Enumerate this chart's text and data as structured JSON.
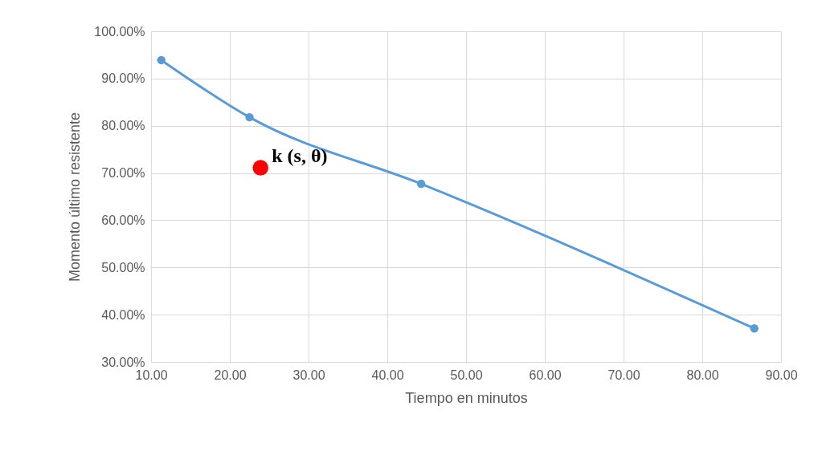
{
  "chart_data": {
    "type": "line",
    "xlabel": "Tiempo en minutos",
    "ylabel": "Momento último resistente",
    "xlim": [
      10,
      90
    ],
    "xticks": [
      {
        "value": 10,
        "label": "10.00"
      },
      {
        "value": 20,
        "label": "20.00"
      },
      {
        "value": 30,
        "label": "30.00"
      },
      {
        "value": 40,
        "label": "40.00"
      },
      {
        "value": 50,
        "label": "50.00"
      },
      {
        "value": 60,
        "label": "60.00"
      },
      {
        "value": 70,
        "label": "70.00"
      },
      {
        "value": 80,
        "label": "80.00"
      },
      {
        "value": 90,
        "label": "90.00"
      }
    ],
    "ylim": [
      30,
      100
    ],
    "yticks": [
      {
        "value": 30,
        "label": "30.00%"
      },
      {
        "value": 40,
        "label": "40.00%"
      },
      {
        "value": 50,
        "label": "50.00%"
      },
      {
        "value": 60,
        "label": "60.00%"
      },
      {
        "value": 70,
        "label": "70.00%"
      },
      {
        "value": 80,
        "label": "80.00%"
      },
      {
        "value": 90,
        "label": "90.00%"
      },
      {
        "value": 100,
        "label": "100.00%"
      }
    ],
    "grid": true,
    "marker": "circle",
    "line_style": "solid",
    "series": [
      {
        "color": "#5b9bd5",
        "x": [
          11.3,
          22.5,
          44.3,
          86.6
        ],
        "values": [
          93.9,
          81.8,
          67.7,
          37.1
        ]
      },
      {
        "type": "scatter",
        "color": "#ff0000",
        "x": [
          23.9
        ],
        "values": [
          71.1
        ]
      }
    ],
    "annotations": [
      {
        "text": "k (s, θ)",
        "x": 23.9,
        "y": 71.1
      }
    ]
  }
}
